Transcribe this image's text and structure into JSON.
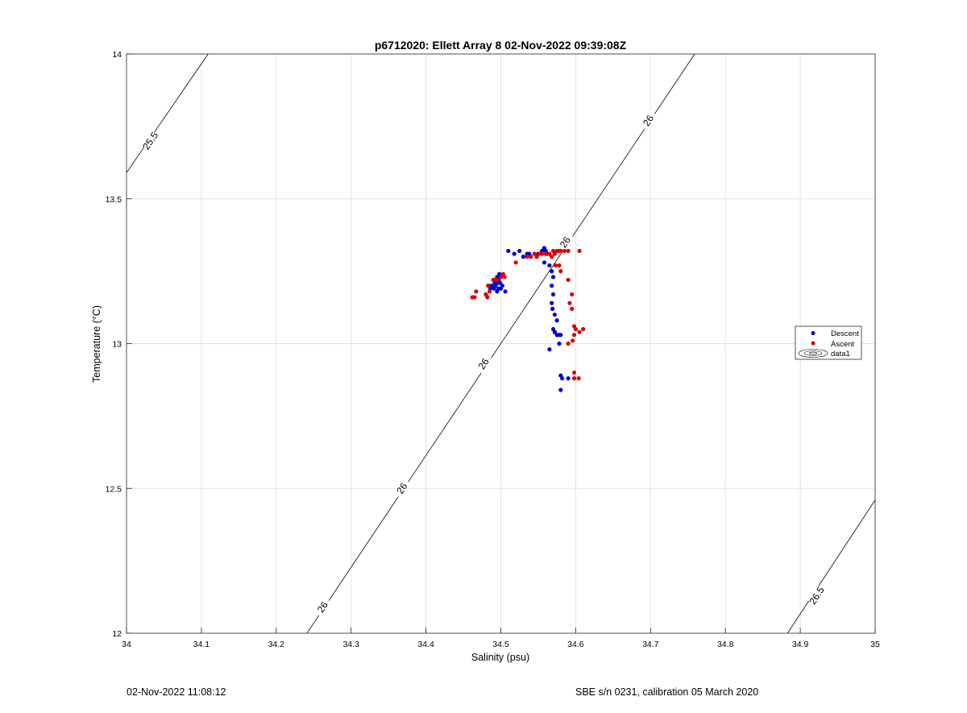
{
  "chart_data": {
    "type": "scatter",
    "title": "p6712020: Ellett Array 8 02-Nov-2022 09:39:08Z",
    "xlabel": "Salinity (psu)",
    "ylabel": "Temperature (°C)",
    "xlim": [
      34,
      35
    ],
    "ylim": [
      12,
      14
    ],
    "xticks": [
      "34",
      "34.1",
      "34.2",
      "34.3",
      "34.4",
      "34.5",
      "34.6",
      "34.7",
      "34.8",
      "34.9",
      "35"
    ],
    "yticks": [
      "12",
      "12.5",
      "13",
      "13.5",
      "14"
    ],
    "grid": true,
    "legend_position": "right",
    "legend": [
      "Descent",
      "Ascent",
      "data1"
    ],
    "contours": [
      {
        "label": "25.5",
        "points": [
          [
            34.0,
            13.59
          ],
          [
            34.109,
            14.0
          ]
        ],
        "label_at": [
          [
            34.032,
            13.7
          ]
        ]
      },
      {
        "label": "26",
        "points": [
          [
            34.241,
            12.0
          ],
          [
            34.759,
            14.0
          ]
        ],
        "label_at": [
          [
            34.262,
            12.09
          ],
          [
            34.368,
            12.5
          ],
          [
            34.477,
            12.93
          ],
          [
            34.586,
            13.35
          ],
          [
            34.697,
            13.77
          ]
        ]
      },
      {
        "label": "26.5",
        "points": [
          [
            34.883,
            12.0
          ],
          [
            35.0,
            12.46
          ]
        ],
        "label_at": [
          [
            34.922,
            12.13
          ]
        ]
      }
    ],
    "series": [
      {
        "name": "Descent",
        "color": "#0000cc",
        "points": [
          [
            34.51,
            13.32
          ],
          [
            34.518,
            13.31
          ],
          [
            34.525,
            13.32
          ],
          [
            34.53,
            13.3
          ],
          [
            34.535,
            13.31
          ],
          [
            34.538,
            13.31
          ],
          [
            34.54,
            13.3
          ],
          [
            34.545,
            13.31
          ],
          [
            34.548,
            13.3
          ],
          [
            34.55,
            13.31
          ],
          [
            34.555,
            13.32
          ],
          [
            34.558,
            13.33
          ],
          [
            34.56,
            13.32
          ],
          [
            34.562,
            13.31
          ],
          [
            34.558,
            13.28
          ],
          [
            34.565,
            13.27
          ],
          [
            34.568,
            13.25
          ],
          [
            34.57,
            13.23
          ],
          [
            34.568,
            13.2
          ],
          [
            34.57,
            13.17
          ],
          [
            34.568,
            13.14
          ],
          [
            34.569,
            13.12
          ],
          [
            34.572,
            13.1
          ],
          [
            34.575,
            13.08
          ],
          [
            34.57,
            13.05
          ],
          [
            34.572,
            13.04
          ],
          [
            34.578,
            13.03
          ],
          [
            34.575,
            13.03
          ],
          [
            34.58,
            13.03
          ],
          [
            34.578,
            13.0
          ],
          [
            34.565,
            12.98
          ],
          [
            34.58,
            12.89
          ],
          [
            34.582,
            12.88
          ],
          [
            34.59,
            12.88
          ],
          [
            34.58,
            12.84
          ],
          [
            34.488,
            13.2
          ],
          [
            34.49,
            13.22
          ],
          [
            34.492,
            13.21
          ],
          [
            34.494,
            13.22
          ],
          [
            34.496,
            13.21
          ],
          [
            34.495,
            13.23
          ],
          [
            34.497,
            13.22
          ],
          [
            34.498,
            13.24
          ],
          [
            34.499,
            13.21
          ],
          [
            34.497,
            13.19
          ],
          [
            34.493,
            13.2
          ],
          [
            34.5,
            13.19
          ],
          [
            34.502,
            13.2
          ],
          [
            34.506,
            13.18
          ],
          [
            34.486,
            13.19
          ],
          [
            34.484,
            13.2
          ],
          [
            34.491,
            13.19
          ],
          [
            34.495,
            13.18
          ]
        ]
      },
      {
        "name": "Ascent",
        "color": "#dd0000",
        "points": [
          [
            34.462,
            13.16
          ],
          [
            34.465,
            13.16
          ],
          [
            34.467,
            13.18
          ],
          [
            34.48,
            13.17
          ],
          [
            34.482,
            13.16
          ],
          [
            34.485,
            13.18
          ],
          [
            34.483,
            13.2
          ],
          [
            34.49,
            13.22
          ],
          [
            34.495,
            13.22
          ],
          [
            34.5,
            13.23
          ],
          [
            34.503,
            13.24
          ],
          [
            34.505,
            13.23
          ],
          [
            34.52,
            13.28
          ],
          [
            34.535,
            13.3
          ],
          [
            34.54,
            13.3
          ],
          [
            34.545,
            13.31
          ],
          [
            34.548,
            13.3
          ],
          [
            34.552,
            13.31
          ],
          [
            34.555,
            13.31
          ],
          [
            34.56,
            13.31
          ],
          [
            34.565,
            13.31
          ],
          [
            34.57,
            13.32
          ],
          [
            34.572,
            13.31
          ],
          [
            34.575,
            13.32
          ],
          [
            34.578,
            13.32
          ],
          [
            34.58,
            13.32
          ],
          [
            34.585,
            13.32
          ],
          [
            34.59,
            13.32
          ],
          [
            34.605,
            13.32
          ],
          [
            34.568,
            13.3
          ],
          [
            34.573,
            13.27
          ],
          [
            34.578,
            13.27
          ],
          [
            34.58,
            13.25
          ],
          [
            34.59,
            13.22
          ],
          [
            34.595,
            13.17
          ],
          [
            34.592,
            13.14
          ],
          [
            34.595,
            13.12
          ],
          [
            34.598,
            13.06
          ],
          [
            34.6,
            13.05
          ],
          [
            34.605,
            13.04
          ],
          [
            34.61,
            13.05
          ],
          [
            34.598,
            13.03
          ],
          [
            34.596,
            13.01
          ],
          [
            34.59,
            13.0
          ],
          [
            34.598,
            12.9
          ],
          [
            34.598,
            12.88
          ],
          [
            34.604,
            12.88
          ]
        ]
      }
    ]
  },
  "footer": {
    "left": "02-Nov-2022 11:08:12",
    "right": "SBE s/n 0231, calibration 05 March 2020"
  }
}
